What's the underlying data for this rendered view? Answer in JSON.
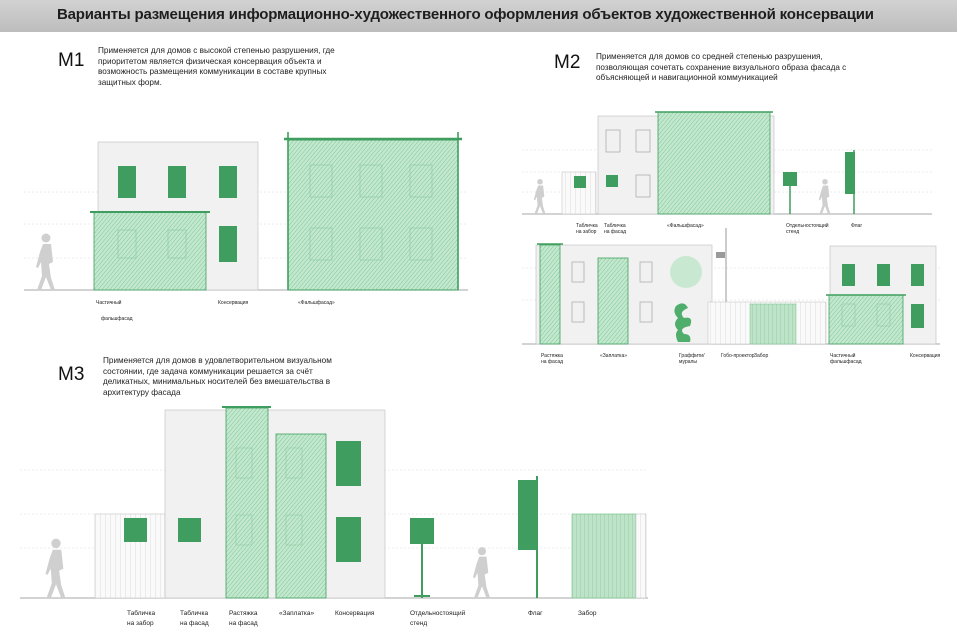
{
  "header": {
    "title": "Варианты размещения информационно-художественного оформления объектов художественной консервации"
  },
  "m1": {
    "code": "М1",
    "description": "Применяется для домов с высокой степенью разрушения, где приоритетом является физическая консервация объекта и возможность размещения коммуникации в составе крупных защитных форм.",
    "labels": {
      "partial": "Частичный",
      "partial2": "фальшфасад",
      "conservation": "Консервация",
      "fake_facade": "«Фальшфасад»"
    }
  },
  "m2": {
    "code": "М2",
    "description": "Применяется для домов со средней степенью разрушения, позволяющая сочетать сохранение визуального образа фасада с объясняющей и навигационной коммуникацией",
    "labels_top": {
      "fence_plate_1": "Табличка",
      "fence_plate_2": "на забор",
      "facade_plate_1": "Табличка",
      "facade_plate_2": "на фасад",
      "fake_facade": "«Фальшфасад»",
      "stand_1": "Отдельностоящий",
      "stand_2": "стенд",
      "flag": "Флаг"
    },
    "labels_bottom": {
      "stretch_1": "Растяжка",
      "stretch_2": "на фасад",
      "patch": "«Заплатка»",
      "graffiti_1": "Граффити/",
      "graffiti_2": "муралы",
      "projector": "Гобо-проектор",
      "fence": "Забор",
      "partial_1": "Частичный",
      "partial_2": "фальшфасад",
      "conservation": "Консервация"
    }
  },
  "m3": {
    "code": "М3",
    "description": "Применяется для домов в удовлетворительном визуальном состоянии, где задача коммуникации решается за счёт деликатных, минимальных носителей без вмешательства в архитектуру фасада",
    "labels": {
      "fence_plate_1": "Табличка",
      "fence_plate_2": "на забор",
      "facade_plate_1": "Табличка",
      "facade_plate_2": "на фасад",
      "stretch_1": "Растяжка",
      "stretch_2": "на фасад",
      "patch": "«Заплатка»",
      "conservation": "Консервация",
      "stand_1": "Отдельностоящий",
      "stand_2": "стенд",
      "flag": "Флаг",
      "fence": "Забор"
    }
  },
  "colors": {
    "green": "#3f9e5f",
    "green_light": "#a9dcb8",
    "wall": "#f2f2f2",
    "wall_stroke": "#b8b8b8"
  }
}
